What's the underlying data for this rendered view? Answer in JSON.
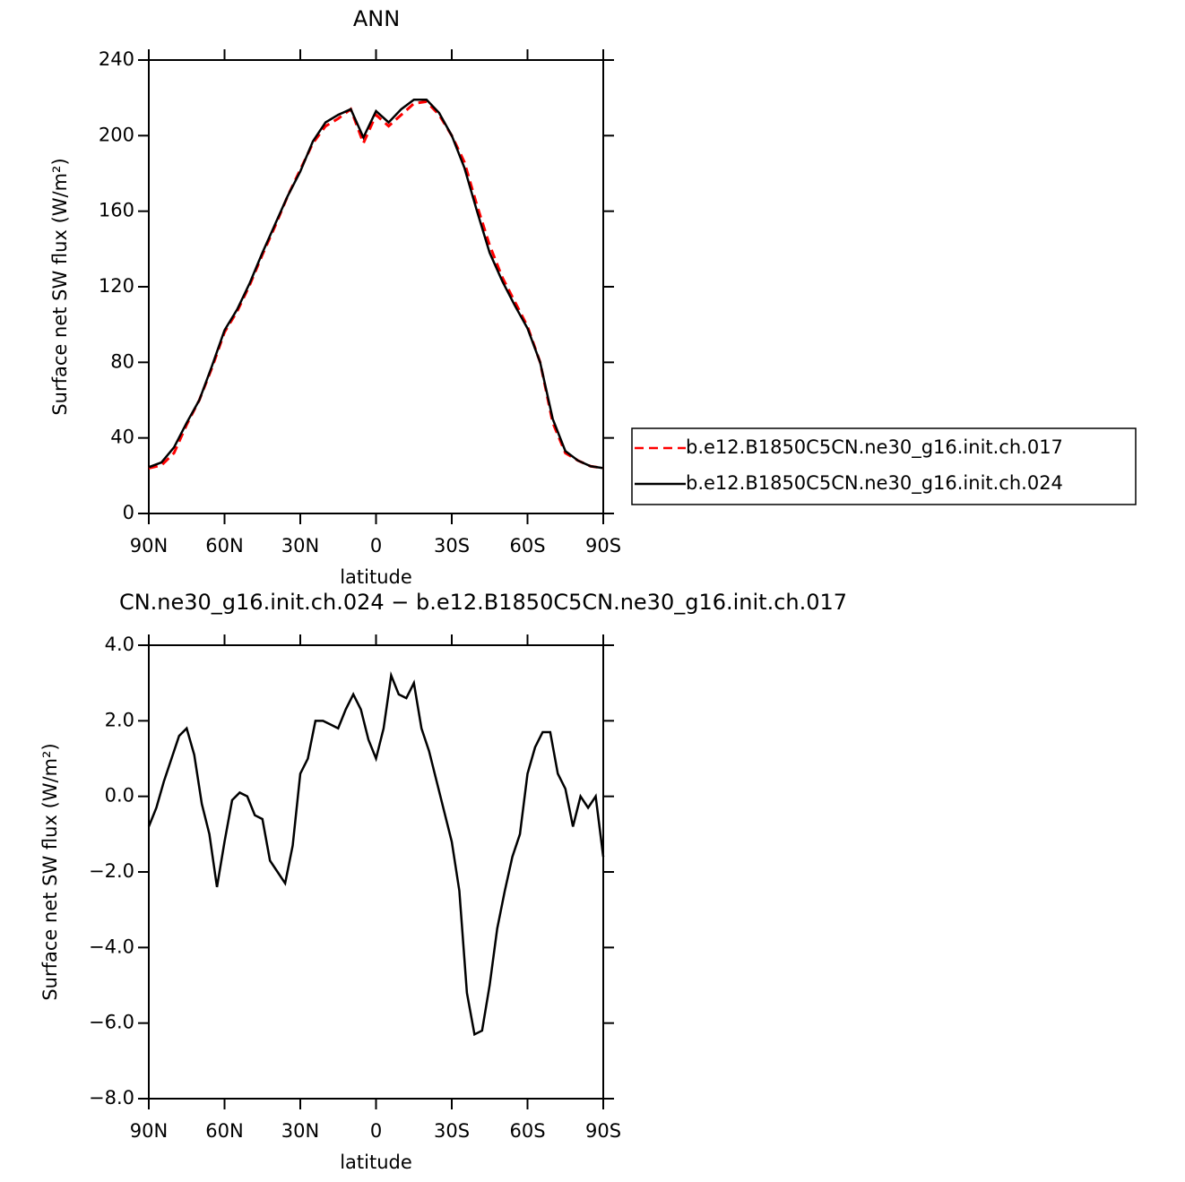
{
  "chart_data": [
    {
      "type": "line",
      "title": "ANN",
      "xlabel": "latitude",
      "ylabel": "Surface net SW flux (W/m²)",
      "x": [
        90,
        85,
        80,
        75,
        70,
        65,
        60,
        55,
        50,
        45,
        40,
        35,
        30,
        25,
        20,
        15,
        10,
        5,
        0,
        -5,
        -10,
        -15,
        -20,
        -25,
        -30,
        -35,
        -40,
        -45,
        -50,
        -55,
        -60,
        -65,
        -70,
        -75,
        -80,
        -85,
        -90
      ],
      "series": [
        {
          "name": "b.e12.B1850C5CN.ne30_g16.init.ch.017",
          "color": "#ff0000",
          "dash": "dashed",
          "values": [
            24,
            25.5,
            32,
            47,
            60,
            77,
            96,
            107,
            121,
            137,
            152,
            168,
            182,
            196,
            205,
            209,
            214,
            196,
            211,
            205,
            211,
            217,
            218,
            211,
            200,
            186,
            163,
            142,
            125,
            112,
            99,
            80,
            48,
            32,
            28,
            25,
            24
          ]
        },
        {
          "name": "b.e12.B1850C5CN.ne30_g16.init.ch.024",
          "color": "#000000",
          "dash": "solid",
          "values": [
            24.5,
            27,
            35,
            48,
            60,
            78,
            97,
            108,
            122,
            138,
            153,
            168,
            181,
            197,
            207,
            211,
            214,
            199,
            213,
            207,
            214,
            219,
            219,
            212,
            200,
            183,
            160,
            138,
            123,
            110,
            98,
            80,
            50,
            33,
            28,
            25,
            24
          ]
        }
      ],
      "xlim": [
        90,
        -90
      ],
      "xticks": [
        {
          "value": 90,
          "label": "90N"
        },
        {
          "value": 60,
          "label": "60N"
        },
        {
          "value": 30,
          "label": "30N"
        },
        0,
        {
          "value": -30,
          "label": "30S"
        },
        {
          "value": -60,
          "label": "60S"
        },
        {
          "value": -90,
          "label": "90S"
        }
      ],
      "ylim": [
        0,
        240
      ],
      "yticks": [
        0,
        40,
        80,
        120,
        160,
        200,
        240
      ],
      "legend": "outside-right"
    },
    {
      "type": "line",
      "title": "CN.ne30_g16.init.ch.024 − b.e12.B1850C5CN.ne30_g16.init.ch.017",
      "xlabel": "latitude",
      "ylabel": "Surface net SW flux (W/m²)",
      "x": [
        90,
        87,
        84,
        81,
        78,
        75,
        72,
        69,
        66,
        63,
        60,
        57,
        54,
        51,
        48,
        45,
        42,
        39,
        36,
        33,
        30,
        27,
        24,
        21,
        18,
        15,
        12,
        9,
        6,
        3,
        0,
        -3,
        -6,
        -9,
        -12,
        -15,
        -18,
        -21,
        -24,
        -27,
        -30,
        -33,
        -36,
        -39,
        -42,
        -45,
        -48,
        -51,
        -54,
        -57,
        -60,
        -63,
        -66,
        -69,
        -72,
        -75,
        -78,
        -81,
        -84,
        -87,
        -90
      ],
      "series": [
        {
          "color": "#000000",
          "dash": "solid",
          "values": [
            -0.8,
            -0.3,
            0.4,
            1.0,
            1.6,
            1.8,
            1.1,
            -0.2,
            -1.0,
            -2.4,
            -1.2,
            -0.1,
            0.1,
            0.0,
            -0.5,
            -0.6,
            -1.7,
            -2.0,
            -2.3,
            -1.3,
            0.6,
            1.0,
            2.0,
            2.0,
            1.9,
            1.8,
            2.3,
            2.7,
            2.3,
            1.5,
            1.0,
            1.8,
            3.2,
            2.7,
            2.6,
            3.0,
            1.8,
            1.2,
            0.4,
            -0.4,
            -1.2,
            -2.5,
            -5.2,
            -6.3,
            -6.2,
            -5.0,
            -3.5,
            -2.5,
            -1.6,
            -1.0,
            0.6,
            1.3,
            1.7,
            1.7,
            0.6,
            0.2,
            -0.8,
            0.0,
            -0.3,
            0.0,
            -1.6
          ]
        }
      ],
      "xlim": [
        90,
        -90
      ],
      "xticks": [
        {
          "value": 90,
          "label": "90N"
        },
        {
          "value": 60,
          "label": "60N"
        },
        {
          "value": 30,
          "label": "30N"
        },
        0,
        {
          "value": -30,
          "label": "30S"
        },
        {
          "value": -60,
          "label": "60S"
        },
        {
          "value": -90,
          "label": "90S"
        }
      ],
      "ylim": [
        -8,
        4
      ],
      "yticks": [
        {
          "value": -8,
          "label": "−8.0"
        },
        {
          "value": -6,
          "label": "−6.0"
        },
        {
          "value": -4,
          "label": "−4.0"
        },
        {
          "value": -2,
          "label": "−2.0"
        },
        {
          "value": 0,
          "label": "0.0"
        },
        {
          "value": 2,
          "label": "2.0"
        },
        {
          "value": 4,
          "label": "4.0"
        }
      ]
    }
  ]
}
